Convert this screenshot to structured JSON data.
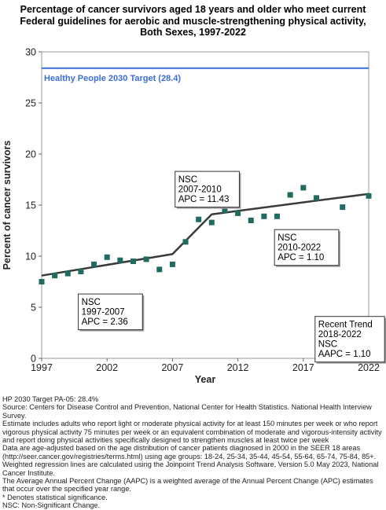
{
  "title_lines": [
    "Percentage of cancer survivors aged 18 years and older who meet current",
    "Federal guidelines for aerobic and muscle-strengthening physical activity,",
    "Both Sexes,  1997-2022"
  ],
  "chart_data": {
    "type": "scatter",
    "xlabel": "Year",
    "ylabel": "Percent of cancer survivors",
    "xlim": [
      1997,
      2022
    ],
    "ylim": [
      0,
      30
    ],
    "x_ticks": [
      1997,
      2002,
      2007,
      2012,
      2017,
      2022
    ],
    "y_ticks": [
      0,
      5,
      10,
      15,
      20,
      25,
      30
    ],
    "grid": false,
    "target": {
      "label": "Healthy People 2030 Target (28.4)",
      "value": 28.4,
      "color": "#3a6fd8"
    },
    "points": [
      {
        "x": 1997,
        "y": 7.5
      },
      {
        "x": 1998,
        "y": 8.1
      },
      {
        "x": 1999,
        "y": 8.3
      },
      {
        "x": 2000,
        "y": 8.5
      },
      {
        "x": 2001,
        "y": 9.2
      },
      {
        "x": 2002,
        "y": 9.9
      },
      {
        "x": 2003,
        "y": 9.6
      },
      {
        "x": 2004,
        "y": 9.5
      },
      {
        "x": 2005,
        "y": 9.7
      },
      {
        "x": 2006,
        "y": 8.7
      },
      {
        "x": 2007,
        "y": 9.2
      },
      {
        "x": 2008,
        "y": 11.4
      },
      {
        "x": 2009,
        "y": 13.6
      },
      {
        "x": 2010,
        "y": 13.3
      },
      {
        "x": 2011,
        "y": 14.5
      },
      {
        "x": 2012,
        "y": 14.2
      },
      {
        "x": 2013,
        "y": 13.5
      },
      {
        "x": 2014,
        "y": 13.9
      },
      {
        "x": 2015,
        "y": 13.9
      },
      {
        "x": 2016,
        "y": 16.0
      },
      {
        "x": 2017,
        "y": 16.7
      },
      {
        "x": 2018,
        "y": 15.7
      },
      {
        "x": 2020,
        "y": 14.8
      },
      {
        "x": 2022,
        "y": 15.9
      }
    ],
    "trend_line": [
      {
        "x": 1997,
        "y": 8.1
      },
      {
        "x": 2007,
        "y": 10.2
      },
      {
        "x": 2010,
        "y": 14.1
      },
      {
        "x": 2022,
        "y": 16.1
      }
    ],
    "point_color": "#1f6b5f",
    "line_color": "#3a3a3a",
    "annotations": [
      {
        "lines": [
          "NSC",
          "1997-2007",
          "APC =  2.36"
        ],
        "anchor": {
          "x": 1999.8,
          "y": 6.3
        }
      },
      {
        "lines": [
          "NSC",
          "2007-2010",
          "APC = 11.43"
        ],
        "anchor": {
          "x": 2007.2,
          "y": 18.3
        }
      },
      {
        "lines": [
          "NSC",
          "2010-2022",
          "APC =  1.10"
        ],
        "anchor": {
          "x": 2014.8,
          "y": 12.6
        }
      },
      {
        "lines": [
          "Recent Trend",
          "2018-2022",
          "NSC",
          "AAPC =  1.10"
        ],
        "anchor": {
          "x": 2017.9,
          "y": 4.1
        }
      }
    ]
  },
  "footnotes": [
    "HP 2030 Target PA-05: 28.4%",
    "Source: Centers for Disease Control and Prevention, National Center for Health Statistics. National Health Interview Survey.",
    "Estimate includes adults who report light or moderate physical activity for at least 150 minutes per week or who report vigorous physical activity 75 minutes per week or an equivalent combination of moderate and vigorous-intensity activity and report doing physical activities specifically designed to strengthen muscles at least twice per week",
    "Data are age-adjusted based on the age distribution of cancer patients diagnosed in 2000 in the SEER 18 areas (http://seer.cancer.gov/registries/terms.html) using age groups: 18-24, 25-34, 35-44, 45-54, 55-64, 65-74, 75-84, 85+.",
    "Weighted regression lines are calculated using the Joinpoint Trend Analysis Software, Version 5.0 May 2023, National Cancer Institute.",
    "The Average Annual Percent Change (AAPC) is a weighted average of the Annual Percent Change (APC) estimates that occur over the specified year range.",
    "* Denotes statistical significance.",
    "NSC: Non-Significant Change."
  ]
}
